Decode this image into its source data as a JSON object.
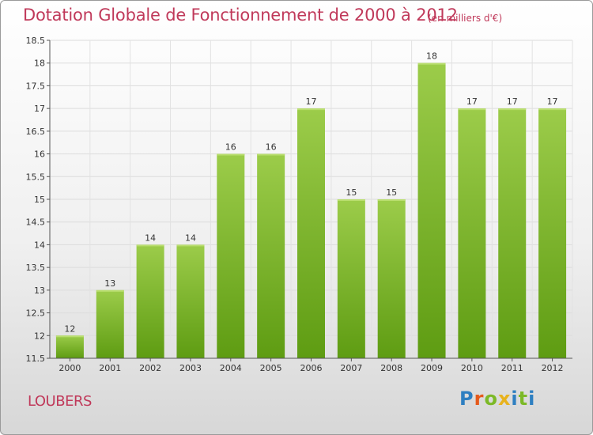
{
  "chart_data": {
    "type": "bar",
    "title": "Dotation Globale de Fonctionnement de 2000 à 2012",
    "subtitle": "(en milliers d'€)",
    "categories": [
      "2000",
      "2001",
      "2002",
      "2003",
      "2004",
      "2005",
      "2006",
      "2007",
      "2008",
      "2009",
      "2010",
      "2011",
      "2012"
    ],
    "values": [
      12,
      13,
      14,
      14,
      16,
      16,
      17,
      15,
      15,
      18,
      17,
      17,
      17
    ],
    "data_labels": [
      "12",
      "13",
      "14",
      "14",
      "16",
      "16",
      "17",
      "15",
      "15",
      "18",
      "17",
      "17",
      "17"
    ],
    "ylim": [
      11.5,
      18.5
    ],
    "yticks": [
      "11.5",
      "12",
      "12.5",
      "13",
      "13.5",
      "14",
      "14.5",
      "15",
      "15.5",
      "16",
      "16.5",
      "17",
      "17.5",
      "18",
      "18.5"
    ],
    "grid": true,
    "colors": {
      "bar_top": "#9ccc4a",
      "bar_bottom": "#5e9c12",
      "title": "#c0395a"
    }
  },
  "footer": {
    "commune": "LOUBERS",
    "logo": "Proxiti"
  }
}
